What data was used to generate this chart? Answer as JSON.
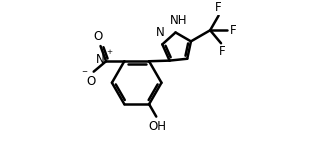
{
  "background_color": "#ffffff",
  "line_color": "#000000",
  "line_width": 1.8,
  "font_size": 8.5,
  "figsize": [
    3.36,
    1.46
  ],
  "dpi": 100,
  "xlim": [
    0,
    10
  ],
  "ylim": [
    0,
    5
  ]
}
